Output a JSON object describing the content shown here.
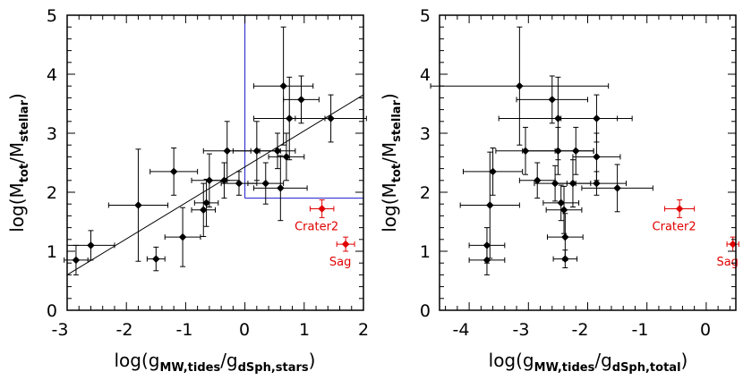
{
  "chart_data": [
    {
      "type": "scatter",
      "panel": "left",
      "xlabel_main": "log(g",
      "xlabel_sub1": "MW,tides",
      "xlabel_mid": "/g",
      "xlabel_sub2": "dSph,stars",
      "xlabel_end": ")",
      "ylabel_main": "log(M",
      "ylabel_sub1": "tot",
      "ylabel_mid": "/M",
      "ylabel_sub2": "stellar",
      "ylabel_end": ")",
      "xlim": [
        -3,
        2
      ],
      "ylim": [
        0,
        5
      ],
      "xticks": [
        "-3",
        "-2",
        "-1",
        "0",
        "1",
        "2"
      ],
      "yticks": [
        "0",
        "1",
        "2",
        "3",
        "4",
        "5"
      ],
      "fit_line": {
        "x": [
          -3,
          2
        ],
        "y": [
          0.6,
          3.65
        ]
      },
      "guide_lines": [
        {
          "x": [
            0,
            0
          ],
          "y": [
            1.9,
            5
          ]
        },
        {
          "x": [
            0,
            2
          ],
          "y": [
            1.9,
            1.9
          ]
        }
      ],
      "points": [
        {
          "x": -2.85,
          "y": 0.85,
          "xerr": 0.2,
          "yerr": 0.25
        },
        {
          "x": -2.6,
          "y": 1.1,
          "xerr": 0.4,
          "yerr": 0.25
        },
        {
          "x": -1.8,
          "y": 1.78,
          "xerr": 0.5,
          "yerr": 0.95
        },
        {
          "x": -1.5,
          "y": 0.87,
          "xerr": 0.15,
          "yerr": 0.2
        },
        {
          "x": -1.2,
          "y": 2.35,
          "xerr": 0.4,
          "yerr": 0.4
        },
        {
          "x": -1.05,
          "y": 1.24,
          "xerr": 0.3,
          "yerr": 0.5
        },
        {
          "x": -0.7,
          "y": 1.7,
          "xerr": 0.2,
          "yerr": 0.45
        },
        {
          "x": -0.65,
          "y": 1.82,
          "xerr": 0.2,
          "yerr": 0.4
        },
        {
          "x": -0.6,
          "y": 2.2,
          "xerr": 0.3,
          "yerr": 0.45
        },
        {
          "x": -0.35,
          "y": 2.2,
          "xerr": 0.25,
          "yerr": 0.3
        },
        {
          "x": -0.3,
          "y": 2.7,
          "xerr": 0.4,
          "yerr": 0.5
        },
        {
          "x": -0.1,
          "y": 2.15,
          "xerr": 0.3,
          "yerr": 0.2
        },
        {
          "x": 0.2,
          "y": 2.7,
          "xerr": 0.4,
          "yerr": 0.5
        },
        {
          "x": 0.35,
          "y": 2.15,
          "xerr": 0.3,
          "yerr": 0.35
        },
        {
          "x": 0.55,
          "y": 2.7,
          "xerr": 0.3,
          "yerr": 0.3
        },
        {
          "x": 0.6,
          "y": 2.07,
          "xerr": 0.45,
          "yerr": 0.55
        },
        {
          "x": 0.65,
          "y": 3.8,
          "xerr": 0.5,
          "yerr": 1.0
        },
        {
          "x": 0.7,
          "y": 2.6,
          "xerr": 0.3,
          "yerr": 0.4
        },
        {
          "x": 0.75,
          "y": 3.25,
          "xerr": 0.6,
          "yerr": 0.7
        },
        {
          "x": 0.95,
          "y": 3.57,
          "xerr": 0.3,
          "yerr": 0.4
        },
        {
          "x": 1.45,
          "y": 3.25,
          "xerr": 0.6,
          "yerr": 0.4
        }
      ],
      "highlight_points": [
        {
          "label": "Crater2",
          "x": 1.3,
          "y": 1.72,
          "xerr": 0.2,
          "yerr": 0.15
        },
        {
          "label": "Sag",
          "x": 1.7,
          "y": 1.12,
          "xerr": 0.15,
          "yerr": 0.12
        }
      ]
    },
    {
      "type": "scatter",
      "panel": "right",
      "xlabel_main": "log(g",
      "xlabel_sub1": "MW,tides",
      "xlabel_mid": "/g",
      "xlabel_sub2": "dSph,total",
      "xlabel_end": ")",
      "ylabel_main": "log(M",
      "ylabel_sub1": "tot",
      "ylabel_mid": "/M",
      "ylabel_sub2": "stellar",
      "ylabel_end": ")",
      "xlim": [
        -4.5,
        0.5
      ],
      "ylim": [
        0,
        5
      ],
      "xticks": [
        "-4",
        "-3",
        "-2",
        "-1",
        "0"
      ],
      "yticks": [
        "0",
        "1",
        "2",
        "3",
        "4",
        "5"
      ],
      "points": [
        {
          "x": -3.7,
          "y": 1.1,
          "xerr": 0.3,
          "yerr": 0.3
        },
        {
          "x": -3.7,
          "y": 0.85,
          "xerr": 0.3,
          "yerr": 0.25
        },
        {
          "x": -3.65,
          "y": 1.78,
          "xerr": 0.5,
          "yerr": 0.9
        },
        {
          "x": -3.6,
          "y": 2.35,
          "xerr": 0.5,
          "yerr": 0.4
        },
        {
          "x": -3.15,
          "y": 3.8,
          "xerr": 1.5,
          "yerr": 1.0
        },
        {
          "x": -3.05,
          "y": 2.7,
          "xerr": 0.5,
          "yerr": 0.4
        },
        {
          "x": -2.85,
          "y": 2.2,
          "xerr": 0.3,
          "yerr": 0.3
        },
        {
          "x": -2.6,
          "y": 3.57,
          "xerr": 0.6,
          "yerr": 0.4
        },
        {
          "x": -2.55,
          "y": 2.15,
          "xerr": 0.35,
          "yerr": 0.3
        },
        {
          "x": -2.5,
          "y": 2.7,
          "xerr": 0.6,
          "yerr": 0.4
        },
        {
          "x": -2.5,
          "y": 3.25,
          "xerr": 1.0,
          "yerr": 0.7
        },
        {
          "x": -2.45,
          "y": 1.82,
          "xerr": 0.3,
          "yerr": 0.3
        },
        {
          "x": -2.4,
          "y": 1.7,
          "xerr": 0.3,
          "yerr": 0.4
        },
        {
          "x": -2.38,
          "y": 1.24,
          "xerr": 0.3,
          "yerr": 0.4
        },
        {
          "x": -2.38,
          "y": 0.87,
          "xerr": 0.2,
          "yerr": 0.15
        },
        {
          "x": -2.25,
          "y": 2.15,
          "xerr": 0.3,
          "yerr": 0.4
        },
        {
          "x": -2.2,
          "y": 2.7,
          "xerr": 0.3,
          "yerr": 0.4
        },
        {
          "x": -1.85,
          "y": 3.25,
          "xerr": 0.6,
          "yerr": 0.4
        },
        {
          "x": -1.85,
          "y": 2.6,
          "xerr": 0.4,
          "yerr": 0.4
        },
        {
          "x": -1.85,
          "y": 2.15,
          "xerr": 0.5,
          "yerr": 0.2
        },
        {
          "x": -1.5,
          "y": 2.07,
          "xerr": 0.6,
          "yerr": 0.4
        }
      ],
      "highlight_points": [
        {
          "label": "Crater2",
          "x": -0.45,
          "y": 1.72,
          "xerr": 0.25,
          "yerr": 0.15
        },
        {
          "label": "Sag",
          "x": 0.45,
          "y": 1.12,
          "xerr": 0.1,
          "yerr": 0.12
        }
      ]
    }
  ],
  "colors": {
    "point": "#000000",
    "highlight": "#e00000",
    "guide": "#1a1acc",
    "fit": "#000000"
  }
}
